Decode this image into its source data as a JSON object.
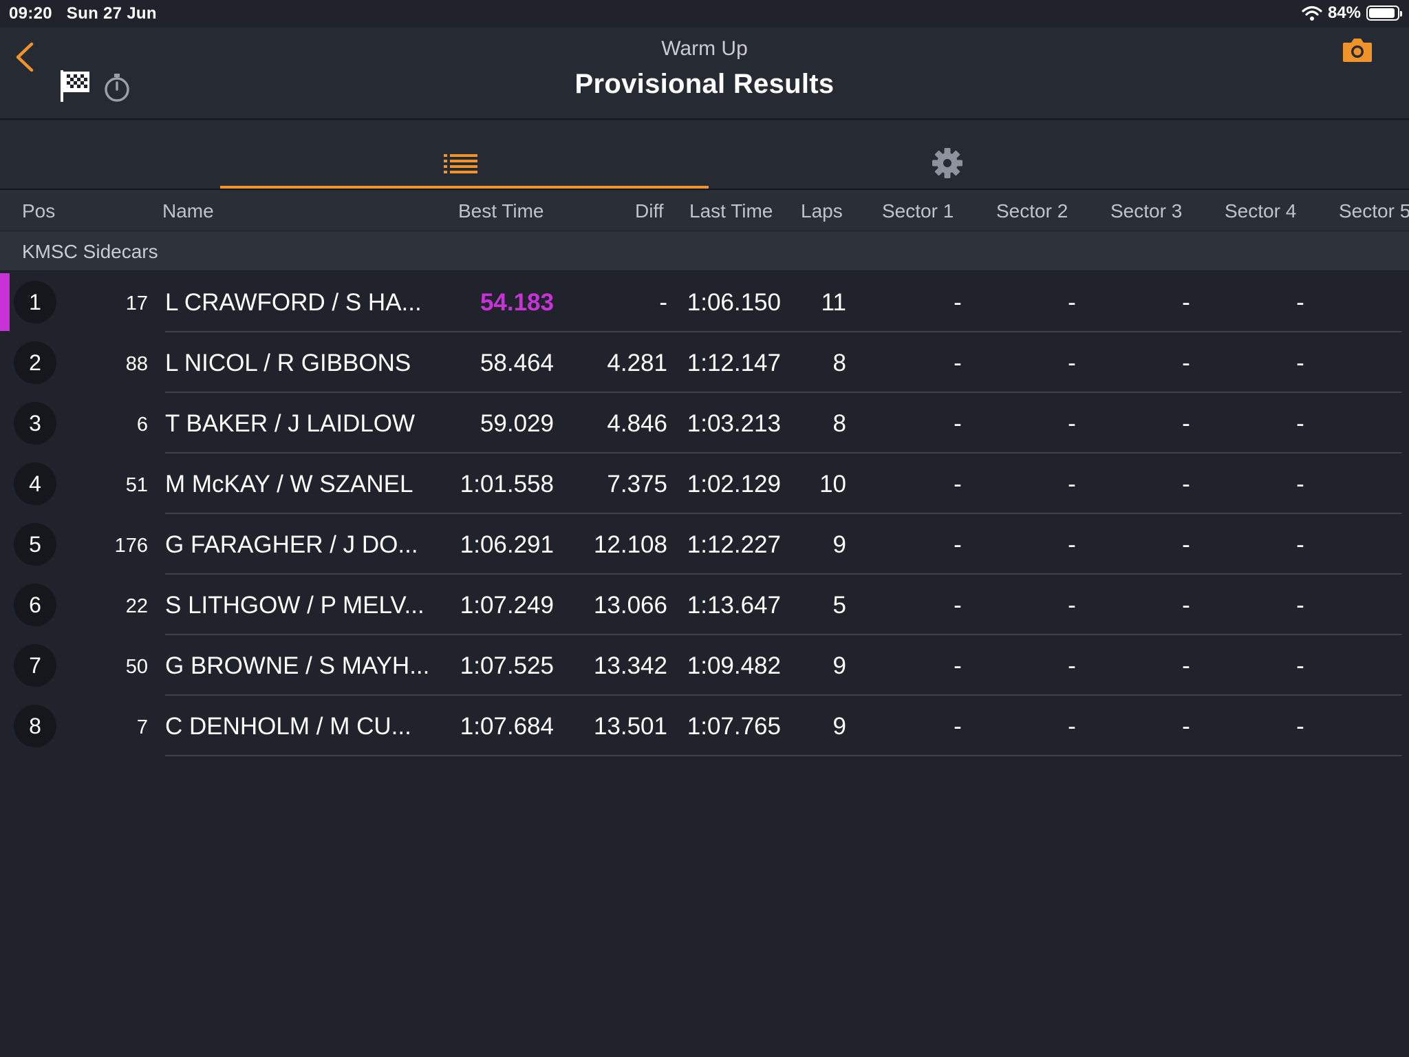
{
  "status_bar": {
    "time": "09:20",
    "date": "Sun 27 Jun",
    "battery": "84%",
    "battery_level": 0.84
  },
  "header": {
    "subtitle": "Warm Up",
    "title": "Provisional Results"
  },
  "icons": {
    "back": "chevron-left-icon",
    "flag": "checkered-flag-icon",
    "timer": "stopwatch-icon",
    "camera": "camera-icon",
    "list": "list-icon",
    "settings": "gear-icon"
  },
  "colors": {
    "accent": "#f0932b",
    "fastest": "#c733d6",
    "background": "#20232c"
  },
  "columns": [
    "Pos",
    "Name",
    "Best Time",
    "Diff",
    "Last Time",
    "Laps",
    "Sector 1",
    "Sector 2",
    "Sector 3",
    "Sector 4",
    "Sector 5"
  ],
  "group": "KMSC Sidecars",
  "rows": [
    {
      "pos": "1",
      "num": "17",
      "name": "L CRAWFORD / S HA...",
      "best": "54.183",
      "diff": "-",
      "last": "1:06.150",
      "laps": "11",
      "s1": "-",
      "s2": "-",
      "s3": "-",
      "s4": "-"
    },
    {
      "pos": "2",
      "num": "88",
      "name": "L NICOL / R GIBBONS",
      "best": "58.464",
      "diff": "4.281",
      "last": "1:12.147",
      "laps": "8",
      "s1": "-",
      "s2": "-",
      "s3": "-",
      "s4": "-"
    },
    {
      "pos": "3",
      "num": "6",
      "name": "T BAKER / J LAIDLOW",
      "best": "59.029",
      "diff": "4.846",
      "last": "1:03.213",
      "laps": "8",
      "s1": "-",
      "s2": "-",
      "s3": "-",
      "s4": "-"
    },
    {
      "pos": "4",
      "num": "51",
      "name": "M McKAY / W SZANEL",
      "best": "1:01.558",
      "diff": "7.375",
      "last": "1:02.129",
      "laps": "10",
      "s1": "-",
      "s2": "-",
      "s3": "-",
      "s4": "-"
    },
    {
      "pos": "5",
      "num": "176",
      "name": "G FARAGHER / J DO...",
      "best": "1:06.291",
      "diff": "12.108",
      "last": "1:12.227",
      "laps": "9",
      "s1": "-",
      "s2": "-",
      "s3": "-",
      "s4": "-"
    },
    {
      "pos": "6",
      "num": "22",
      "name": "S LITHGOW / P MELV...",
      "best": "1:07.249",
      "diff": "13.066",
      "last": "1:13.647",
      "laps": "5",
      "s1": "-",
      "s2": "-",
      "s3": "-",
      "s4": "-"
    },
    {
      "pos": "7",
      "num": "50",
      "name": "G BROWNE / S MAYH...",
      "best": "1:07.525",
      "diff": "13.342",
      "last": "1:09.482",
      "laps": "9",
      "s1": "-",
      "s2": "-",
      "s3": "-",
      "s4": "-"
    },
    {
      "pos": "8",
      "num": "7",
      "name": "C DENHOLM / M CU...",
      "best": "1:07.684",
      "diff": "13.501",
      "last": "1:07.765",
      "laps": "9",
      "s1": "-",
      "s2": "-",
      "s3": "-",
      "s4": "-"
    }
  ]
}
